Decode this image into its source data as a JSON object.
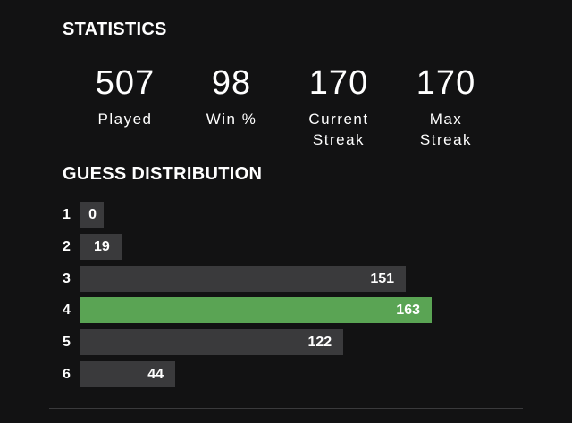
{
  "statistics": {
    "title": "STATISTICS",
    "items": [
      {
        "value": 507,
        "label": "Played"
      },
      {
        "value": 98,
        "label": "Win %"
      },
      {
        "value": 170,
        "label": "Current Streak"
      },
      {
        "value": 170,
        "label": "Max Streak"
      }
    ]
  },
  "guess_distribution": {
    "title": "GUESS DISTRIBUTION",
    "categories": [
      "1",
      "2",
      "3",
      "4",
      "5",
      "6"
    ],
    "values": [
      0,
      19,
      151,
      163,
      122,
      44
    ],
    "colors": [
      "#3a3a3c",
      "#3a3a3c",
      "#3a3a3c",
      "#5aa454",
      "#3a3a3c",
      "#3a3a3c"
    ]
  }
}
